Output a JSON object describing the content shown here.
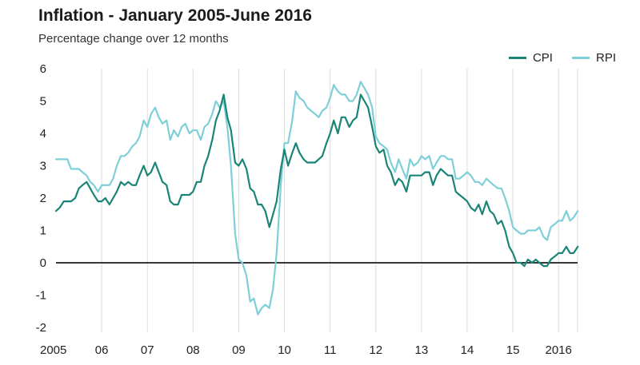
{
  "chart_data": {
    "type": "line",
    "title": "Inflation - January 2005-June 2016",
    "subtitle": "Percentage change over 12 months",
    "xlabel": "",
    "ylabel": "",
    "xlim": [
      2005.0,
      2016.4167
    ],
    "ylim": [
      -2,
      6
    ],
    "yticks": [
      "-2",
      "-1",
      "0",
      "1",
      "2",
      "3",
      "4",
      "5",
      "6"
    ],
    "xticks": [
      {
        "label": "2005",
        "x": 2005
      },
      {
        "label": "06",
        "x": 2006
      },
      {
        "label": "07",
        "x": 2007
      },
      {
        "label": "08",
        "x": 2008
      },
      {
        "label": "09",
        "x": 2009
      },
      {
        "label": "10",
        "x": 2010
      },
      {
        "label": "11",
        "x": 2011
      },
      {
        "label": "12",
        "x": 2012
      },
      {
        "label": "13",
        "x": 2013
      },
      {
        "label": "14",
        "x": 2014
      },
      {
        "label": "15",
        "x": 2015
      },
      {
        "label": "2016",
        "x": 2016
      }
    ],
    "grid": "vertical",
    "legend_position": "top-right",
    "series": [
      {
        "name": "CPI",
        "color": "#1a8576",
        "x": [
          2005.0,
          2005.08,
          2005.17,
          2005.25,
          2005.33,
          2005.42,
          2005.5,
          2005.58,
          2005.67,
          2005.75,
          2005.83,
          2005.92,
          2006.0,
          2006.08,
          2006.17,
          2006.25,
          2006.33,
          2006.42,
          2006.5,
          2006.58,
          2006.67,
          2006.75,
          2006.83,
          2006.92,
          2007.0,
          2007.08,
          2007.17,
          2007.25,
          2007.33,
          2007.42,
          2007.5,
          2007.58,
          2007.67,
          2007.75,
          2007.83,
          2007.92,
          2008.0,
          2008.08,
          2008.17,
          2008.25,
          2008.33,
          2008.42,
          2008.5,
          2008.58,
          2008.67,
          2008.75,
          2008.83,
          2008.92,
          2009.0,
          2009.08,
          2009.17,
          2009.25,
          2009.33,
          2009.42,
          2009.5,
          2009.58,
          2009.67,
          2009.75,
          2009.83,
          2009.92,
          2010.0,
          2010.08,
          2010.17,
          2010.25,
          2010.33,
          2010.42,
          2010.5,
          2010.58,
          2010.67,
          2010.75,
          2010.83,
          2010.92,
          2011.0,
          2011.08,
          2011.17,
          2011.25,
          2011.33,
          2011.42,
          2011.5,
          2011.58,
          2011.67,
          2011.75,
          2011.83,
          2011.92,
          2012.0,
          2012.08,
          2012.17,
          2012.25,
          2012.33,
          2012.42,
          2012.5,
          2012.58,
          2012.67,
          2012.75,
          2012.83,
          2012.92,
          2013.0,
          2013.08,
          2013.17,
          2013.25,
          2013.33,
          2013.42,
          2013.5,
          2013.58,
          2013.67,
          2013.75,
          2013.83,
          2013.92,
          2014.0,
          2014.08,
          2014.17,
          2014.25,
          2014.33,
          2014.42,
          2014.5,
          2014.58,
          2014.67,
          2014.75,
          2014.83,
          2014.92,
          2015.0,
          2015.08,
          2015.17,
          2015.25,
          2015.33,
          2015.42,
          2015.5,
          2015.58,
          2015.67,
          2015.75,
          2015.83,
          2015.92,
          2016.0,
          2016.08,
          2016.17,
          2016.25,
          2016.33,
          2016.42
        ],
        "values": [
          1.6,
          1.7,
          1.9,
          1.9,
          1.9,
          2.0,
          2.3,
          2.4,
          2.5,
          2.3,
          2.1,
          1.9,
          1.9,
          2.0,
          1.8,
          2.0,
          2.2,
          2.5,
          2.4,
          2.5,
          2.4,
          2.4,
          2.7,
          3.0,
          2.7,
          2.8,
          3.1,
          2.8,
          2.5,
          2.4,
          1.9,
          1.8,
          1.8,
          2.1,
          2.1,
          2.1,
          2.2,
          2.5,
          2.5,
          3.0,
          3.3,
          3.8,
          4.4,
          4.7,
          5.2,
          4.5,
          4.1,
          3.1,
          3.0,
          3.2,
          2.9,
          2.3,
          2.2,
          1.8,
          1.8,
          1.6,
          1.1,
          1.5,
          1.9,
          2.9,
          3.5,
          3.0,
          3.4,
          3.7,
          3.4,
          3.2,
          3.1,
          3.1,
          3.1,
          3.2,
          3.3,
          3.7,
          4.0,
          4.4,
          4.0,
          4.5,
          4.5,
          4.2,
          4.4,
          4.5,
          5.2,
          5.0,
          4.8,
          4.2,
          3.6,
          3.4,
          3.5,
          3.0,
          2.8,
          2.4,
          2.6,
          2.5,
          2.2,
          2.7,
          2.7,
          2.7,
          2.7,
          2.8,
          2.8,
          2.4,
          2.7,
          2.9,
          2.8,
          2.7,
          2.7,
          2.2,
          2.1,
          2.0,
          1.9,
          1.7,
          1.6,
          1.8,
          1.5,
          1.9,
          1.6,
          1.5,
          1.2,
          1.3,
          1.0,
          0.5,
          0.3,
          0.0,
          0.0,
          -0.1,
          0.1,
          0.0,
          0.1,
          0.0,
          -0.1,
          -0.1,
          0.1,
          0.2,
          0.3,
          0.3,
          0.5,
          0.3,
          0.3,
          0.5
        ]
      },
      {
        "name": "RPI",
        "color": "#7fcfd9",
        "x": [
          2005.0,
          2005.08,
          2005.17,
          2005.25,
          2005.33,
          2005.42,
          2005.5,
          2005.58,
          2005.67,
          2005.75,
          2005.83,
          2005.92,
          2006.0,
          2006.08,
          2006.17,
          2006.25,
          2006.33,
          2006.42,
          2006.5,
          2006.58,
          2006.67,
          2006.75,
          2006.83,
          2006.92,
          2007.0,
          2007.08,
          2007.17,
          2007.25,
          2007.33,
          2007.42,
          2007.5,
          2007.58,
          2007.67,
          2007.75,
          2007.83,
          2007.92,
          2008.0,
          2008.08,
          2008.17,
          2008.25,
          2008.33,
          2008.42,
          2008.5,
          2008.58,
          2008.67,
          2008.75,
          2008.83,
          2008.92,
          2009.0,
          2009.08,
          2009.17,
          2009.25,
          2009.33,
          2009.42,
          2009.5,
          2009.58,
          2009.67,
          2009.75,
          2009.83,
          2009.92,
          2010.0,
          2010.08,
          2010.17,
          2010.25,
          2010.33,
          2010.42,
          2010.5,
          2010.58,
          2010.67,
          2010.75,
          2010.83,
          2010.92,
          2011.0,
          2011.08,
          2011.17,
          2011.25,
          2011.33,
          2011.42,
          2011.5,
          2011.58,
          2011.67,
          2011.75,
          2011.83,
          2011.92,
          2012.0,
          2012.08,
          2012.17,
          2012.25,
          2012.33,
          2012.42,
          2012.5,
          2012.58,
          2012.67,
          2012.75,
          2012.83,
          2012.92,
          2013.0,
          2013.08,
          2013.17,
          2013.25,
          2013.33,
          2013.42,
          2013.5,
          2013.58,
          2013.67,
          2013.75,
          2013.83,
          2013.92,
          2014.0,
          2014.08,
          2014.17,
          2014.25,
          2014.33,
          2014.42,
          2014.5,
          2014.58,
          2014.67,
          2014.75,
          2014.83,
          2014.92,
          2015.0,
          2015.08,
          2015.17,
          2015.25,
          2015.33,
          2015.42,
          2015.5,
          2015.58,
          2015.67,
          2015.75,
          2015.83,
          2015.92,
          2016.0,
          2016.08,
          2016.17,
          2016.25,
          2016.33,
          2016.42
        ],
        "values": [
          3.2,
          3.2,
          3.2,
          3.2,
          2.9,
          2.9,
          2.9,
          2.8,
          2.7,
          2.5,
          2.4,
          2.2,
          2.4,
          2.4,
          2.4,
          2.6,
          3.0,
          3.3,
          3.3,
          3.4,
          3.6,
          3.7,
          3.9,
          4.4,
          4.2,
          4.6,
          4.8,
          4.5,
          4.3,
          4.4,
          3.8,
          4.1,
          3.9,
          4.2,
          4.3,
          4.0,
          4.1,
          4.1,
          3.8,
          4.2,
          4.3,
          4.6,
          5.0,
          4.8,
          5.0,
          4.2,
          3.0,
          0.9,
          0.1,
          0.0,
          -0.4,
          -1.2,
          -1.1,
          -1.6,
          -1.4,
          -1.3,
          -1.4,
          -0.8,
          0.3,
          2.4,
          3.7,
          3.7,
          4.4,
          5.3,
          5.1,
          5.0,
          4.8,
          4.7,
          4.6,
          4.5,
          4.7,
          4.8,
          5.1,
          5.5,
          5.3,
          5.2,
          5.2,
          5.0,
          5.0,
          5.2,
          5.6,
          5.4,
          5.2,
          4.8,
          3.9,
          3.7,
          3.6,
          3.5,
          3.1,
          2.8,
          3.2,
          2.9,
          2.6,
          3.2,
          3.0,
          3.1,
          3.3,
          3.2,
          3.3,
          2.9,
          3.1,
          3.3,
          3.3,
          3.2,
          3.2,
          2.6,
          2.6,
          2.7,
          2.8,
          2.7,
          2.5,
          2.5,
          2.4,
          2.6,
          2.5,
          2.4,
          2.3,
          2.3,
          2.0,
          1.6,
          1.1,
          1.0,
          0.9,
          0.9,
          1.0,
          1.0,
          1.0,
          1.1,
          0.8,
          0.7,
          1.1,
          1.2,
          1.3,
          1.3,
          1.6,
          1.3,
          1.4,
          1.6
        ]
      }
    ]
  }
}
